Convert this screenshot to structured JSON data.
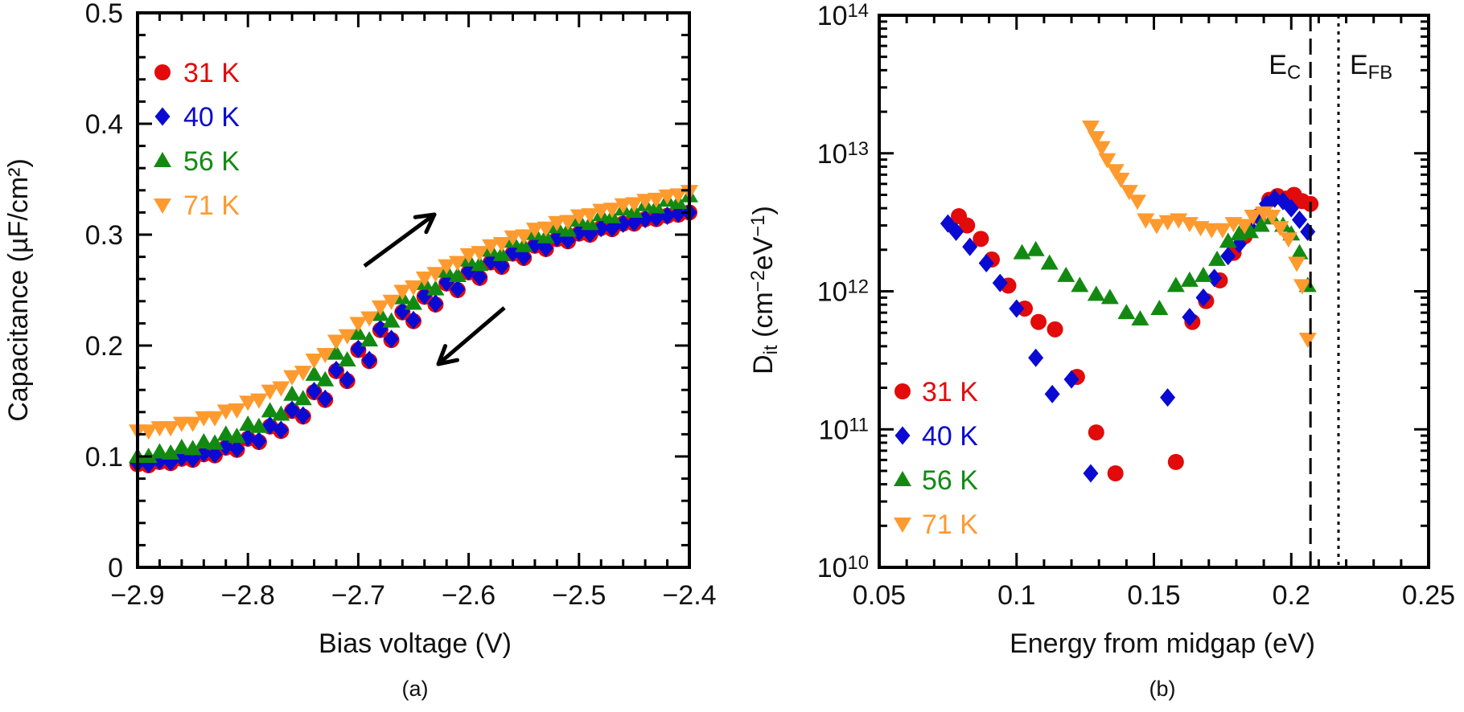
{
  "chart_data": [
    {
      "panel_label": "(a)",
      "type": "scatter",
      "xlabel": "Bias voltage (V)",
      "ylabel": "Capacitance (µF/cm²)",
      "xlim": [
        -2.9,
        -2.4
      ],
      "ylim": [
        0,
        0.5
      ],
      "xticks": [
        -2.9,
        -2.8,
        -2.7,
        -2.6,
        -2.5,
        -2.4
      ],
      "xtick_labels": [
        "−2.9",
        "−2.8",
        "−2.7",
        "−2.6",
        "−2.5",
        "−2.4"
      ],
      "yticks": [
        0,
        0.1,
        0.2,
        0.3,
        0.4,
        0.5
      ],
      "ytick_labels": [
        "0",
        "0.1",
        "0.2",
        "0.3",
        "0.4",
        "0.5"
      ],
      "grid": false,
      "legend_placement": "top-left",
      "annotations": [
        "arrow-up-right",
        "arrow-down-left"
      ],
      "series": [
        {
          "name": "31 K",
          "marker": "circle",
          "color": "#e20a0a",
          "branch1": {
            "x": [
              -2.9,
              -2.88,
              -2.86,
              -2.84,
              -2.82,
              -2.8,
              -2.78,
              -2.76,
              -2.74,
              -2.72,
              -2.7,
              -2.68,
              -2.66,
              -2.64,
              -2.62,
              -2.6,
              -2.58,
              -2.56,
              -2.54,
              -2.52,
              -2.5,
              -2.48,
              -2.46,
              -2.44,
              -2.42,
              -2.4
            ],
            "y": [
              0.093,
              0.095,
              0.098,
              0.102,
              0.108,
              0.116,
              0.127,
              0.141,
              0.158,
              0.177,
              0.196,
              0.214,
              0.23,
              0.244,
              0.256,
              0.266,
              0.275,
              0.283,
              0.29,
              0.296,
              0.301,
              0.306,
              0.31,
              0.314,
              0.317,
              0.32
            ]
          },
          "branch2": {
            "x": [
              -2.89,
              -2.87,
              -2.85,
              -2.83,
              -2.81,
              -2.79,
              -2.77,
              -2.75,
              -2.73,
              -2.71,
              -2.69,
              -2.67,
              -2.65,
              -2.63,
              -2.61,
              -2.59,
              -2.57,
              -2.55,
              -2.53,
              -2.51,
              -2.49,
              -2.47,
              -2.45,
              -2.43,
              -2.41
            ],
            "y": [
              0.092,
              0.094,
              0.097,
              0.101,
              0.106,
              0.113,
              0.123,
              0.136,
              0.151,
              0.168,
              0.186,
              0.205,
              0.222,
              0.237,
              0.25,
              0.261,
              0.271,
              0.279,
              0.287,
              0.294,
              0.3,
              0.305,
              0.31,
              0.314,
              0.318
            ]
          }
        },
        {
          "name": "40 K",
          "marker": "diamond",
          "color": "#0a0ad2",
          "branch1": {
            "x": [
              -2.9,
              -2.88,
              -2.86,
              -2.84,
              -2.82,
              -2.8,
              -2.78,
              -2.76,
              -2.74,
              -2.72,
              -2.7,
              -2.68,
              -2.66,
              -2.64,
              -2.62,
              -2.6,
              -2.58,
              -2.56,
              -2.54,
              -2.52,
              -2.5,
              -2.48,
              -2.46,
              -2.44,
              -2.42,
              -2.4
            ],
            "y": [
              0.094,
              0.096,
              0.099,
              0.103,
              0.109,
              0.117,
              0.128,
              0.142,
              0.159,
              0.178,
              0.197,
              0.215,
              0.231,
              0.245,
              0.257,
              0.267,
              0.276,
              0.284,
              0.291,
              0.297,
              0.302,
              0.306,
              0.31,
              0.314,
              0.317,
              0.32
            ]
          },
          "branch2": {
            "x": [
              -2.89,
              -2.87,
              -2.85,
              -2.83,
              -2.81,
              -2.79,
              -2.77,
              -2.75,
              -2.73,
              -2.71,
              -2.69,
              -2.67,
              -2.65,
              -2.63,
              -2.61,
              -2.59,
              -2.57,
              -2.55,
              -2.53,
              -2.51,
              -2.49,
              -2.47,
              -2.45,
              -2.43,
              -2.41
            ],
            "y": [
              0.093,
              0.095,
              0.098,
              0.102,
              0.107,
              0.114,
              0.124,
              0.137,
              0.152,
              0.169,
              0.187,
              0.206,
              0.223,
              0.238,
              0.251,
              0.262,
              0.272,
              0.28,
              0.288,
              0.295,
              0.301,
              0.306,
              0.311,
              0.315,
              0.319
            ]
          }
        },
        {
          "name": "56 K",
          "marker": "triangle-up",
          "color": "#128a12",
          "branch1": {
            "x": [
              -2.9,
              -2.88,
              -2.86,
              -2.84,
              -2.82,
              -2.8,
              -2.78,
              -2.76,
              -2.74,
              -2.72,
              -2.7,
              -2.68,
              -2.66,
              -2.64,
              -2.62,
              -2.6,
              -2.58,
              -2.56,
              -2.54,
              -2.52,
              -2.5,
              -2.48,
              -2.46,
              -2.44,
              -2.42,
              -2.4
            ],
            "y": [
              0.1,
              0.104,
              0.108,
              0.113,
              0.12,
              0.129,
              0.141,
              0.156,
              0.174,
              0.193,
              0.211,
              0.228,
              0.243,
              0.256,
              0.267,
              0.277,
              0.286,
              0.294,
              0.301,
              0.307,
              0.313,
              0.318,
              0.323,
              0.327,
              0.331,
              0.335
            ]
          },
          "branch2": {
            "x": [
              -2.89,
              -2.87,
              -2.85,
              -2.83,
              -2.81,
              -2.79,
              -2.77,
              -2.75,
              -2.73,
              -2.71,
              -2.69,
              -2.67,
              -2.65,
              -2.63,
              -2.61,
              -2.59,
              -2.57,
              -2.55,
              -2.53,
              -2.51,
              -2.49,
              -2.47,
              -2.45,
              -2.43,
              -2.41
            ],
            "y": [
              0.1,
              0.103,
              0.107,
              0.112,
              0.118,
              0.127,
              0.138,
              0.152,
              0.169,
              0.187,
              0.205,
              0.222,
              0.238,
              0.251,
              0.263,
              0.273,
              0.282,
              0.29,
              0.298,
              0.304,
              0.31,
              0.316,
              0.321,
              0.325,
              0.329
            ]
          }
        },
        {
          "name": "71 K",
          "marker": "triangle-down",
          "color": "#ff9a2e",
          "branch1": {
            "x": [
              -2.9,
              -2.88,
              -2.86,
              -2.84,
              -2.82,
              -2.8,
              -2.78,
              -2.76,
              -2.74,
              -2.72,
              -2.7,
              -2.68,
              -2.66,
              -2.64,
              -2.62,
              -2.6,
              -2.58,
              -2.56,
              -2.54,
              -2.52,
              -2.5,
              -2.48,
              -2.46,
              -2.44,
              -2.42,
              -2.4
            ],
            "y": [
              0.123,
              0.126,
              0.13,
              0.135,
              0.141,
              0.149,
              0.159,
              0.172,
              0.187,
              0.204,
              0.22,
              0.235,
              0.249,
              0.261,
              0.272,
              0.282,
              0.29,
              0.298,
              0.305,
              0.311,
              0.317,
              0.322,
              0.327,
              0.331,
              0.335,
              0.339
            ]
          },
          "branch2": {
            "x": [
              -2.89,
              -2.87,
              -2.85,
              -2.83,
              -2.81,
              -2.79,
              -2.77,
              -2.75,
              -2.73,
              -2.71,
              -2.69,
              -2.67,
              -2.65,
              -2.63,
              -2.61,
              -2.59,
              -2.57,
              -2.55,
              -2.53,
              -2.51,
              -2.49,
              -2.47,
              -2.45,
              -2.43,
              -2.41
            ],
            "y": [
              0.123,
              0.126,
              0.13,
              0.135,
              0.142,
              0.151,
              0.162,
              0.176,
              0.192,
              0.209,
              0.225,
              0.24,
              0.253,
              0.265,
              0.275,
              0.284,
              0.292,
              0.299,
              0.306,
              0.312,
              0.318,
              0.323,
              0.328,
              0.332,
              0.336
            ]
          }
        }
      ]
    },
    {
      "panel_label": "(b)",
      "type": "scatter",
      "xlabel": "Energy from midgap (eV)",
      "ylabel_segments": [
        {
          "t": "D"
        },
        {
          "t": "it",
          "sub": true
        },
        {
          "t": " (cm"
        },
        {
          "t": "−2",
          "sup": true
        },
        {
          "t": "eV"
        },
        {
          "t": "−1",
          "sup": true
        },
        {
          "t": ")"
        }
      ],
      "xlim": [
        0.05,
        0.25
      ],
      "ylim": [
        10000000000.0,
        100000000000000.0
      ],
      "yscale": "log",
      "xticks": [
        0.05,
        0.1,
        0.15,
        0.2,
        0.25
      ],
      "xtick_labels": [
        "0.05",
        "0.1",
        "0.15",
        "0.2",
        "0.25"
      ],
      "yticks": [
        10000000000.0,
        100000000000.0,
        1000000000000.0,
        10000000000000.0,
        100000000000000.0
      ],
      "ytick_labels": [
        {
          "base": "10",
          "exp": "10"
        },
        {
          "base": "10",
          "exp": "11"
        },
        {
          "base": "10",
          "exp": "12"
        },
        {
          "base": "10",
          "exp": "13"
        },
        {
          "base": "10",
          "exp": "14"
        }
      ],
      "grid": false,
      "legend_placement": "bottom-left",
      "vertical_lines": [
        {
          "x": 0.207,
          "style": "dashed",
          "label_segments": [
            {
              "t": "E"
            },
            {
              "t": "C",
              "sub": true
            }
          ]
        },
        {
          "x": 0.2172,
          "style": "dotted",
          "label_segments": [
            {
              "t": "E"
            },
            {
              "t": "FB",
              "sub": true
            }
          ]
        }
      ],
      "series": [
        {
          "name": "31 K",
          "marker": "circle",
          "color": "#e20a0a",
          "x": [
            0.079,
            0.082,
            0.087,
            0.091,
            0.097,
            0.103,
            0.108,
            0.114,
            0.122,
            0.129,
            0.136,
            0.158,
            0.164,
            0.169,
            0.174,
            0.179,
            0.183,
            0.188,
            0.192,
            0.195,
            0.198,
            0.201,
            0.204,
            0.207
          ],
          "y": [
            3500000000000.0,
            3000000000000.0,
            2400000000000.0,
            1700000000000.0,
            1100000000000.0,
            750000000000.0,
            600000000000.0,
            530000000000.0,
            240000000000.0,
            95000000000.0,
            48000000000.0,
            58000000000.0,
            600000000000.0,
            850000000000.0,
            1200000000000.0,
            1900000000000.0,
            2500000000000.0,
            3500000000000.0,
            4600000000000.0,
            4900000000000.0,
            4700000000000.0,
            5000000000000.0,
            4500000000000.0,
            4300000000000.0
          ]
        },
        {
          "name": "40 K",
          "marker": "diamond",
          "color": "#0a0ad2",
          "x": [
            0.075,
            0.078,
            0.083,
            0.089,
            0.094,
            0.1,
            0.107,
            0.113,
            0.12,
            0.127,
            0.155,
            0.163,
            0.168,
            0.172,
            0.177,
            0.181,
            0.185,
            0.188,
            0.191,
            0.194,
            0.197,
            0.2,
            0.203,
            0.206
          ],
          "y": [
            3100000000000.0,
            2700000000000.0,
            2100000000000.0,
            1600000000000.0,
            1150000000000.0,
            750000000000.0,
            330000000000.0,
            180000000000.0,
            230000000000.0,
            48000000000.0,
            170000000000.0,
            650000000000.0,
            900000000000.0,
            1250000000000.0,
            1800000000000.0,
            2200000000000.0,
            2900000000000.0,
            3500000000000.0,
            4300000000000.0,
            4700000000000.0,
            4500000000000.0,
            4000000000000.0,
            3300000000000.0,
            2700000000000.0
          ]
        },
        {
          "name": "56 K",
          "marker": "triangle-up",
          "color": "#128a12",
          "x": [
            0.102,
            0.107,
            0.112,
            0.118,
            0.123,
            0.129,
            0.134,
            0.14,
            0.145,
            0.152,
            0.158,
            0.163,
            0.168,
            0.173,
            0.177,
            0.181,
            0.185,
            0.189,
            0.193,
            0.197,
            0.2,
            0.203,
            0.206
          ],
          "y": [
            1900000000000.0,
            2000000000000.0,
            1600000000000.0,
            1300000000000.0,
            1100000000000.0,
            950000000000.0,
            900000000000.0,
            700000000000.0,
            630000000000.0,
            750000000000.0,
            1100000000000.0,
            1200000000000.0,
            1300000000000.0,
            1700000000000.0,
            2300000000000.0,
            2600000000000.0,
            2700000000000.0,
            3000000000000.0,
            3400000000000.0,
            3000000000000.0,
            2600000000000.0,
            1900000000000.0,
            1100000000000.0
          ]
        },
        {
          "name": "71 K",
          "marker": "triangle-down",
          "color": "#ff9a2e",
          "x": [
            0.127,
            0.129,
            0.131,
            0.133,
            0.136,
            0.138,
            0.141,
            0.144,
            0.147,
            0.151,
            0.155,
            0.159,
            0.163,
            0.167,
            0.171,
            0.175,
            0.179,
            0.183,
            0.186,
            0.19,
            0.193,
            0.196,
            0.199,
            0.202,
            0.204,
            0.206
          ],
          "y": [
            15500000000000.0,
            13000000000000.0,
            11000000000000.0,
            9000000000000.0,
            7500000000000.0,
            6500000000000.0,
            5300000000000.0,
            4500000000000.0,
            3300000000000.0,
            3000000000000.0,
            3200000000000.0,
            3300000000000.0,
            3100000000000.0,
            2900000000000.0,
            2800000000000.0,
            2800000000000.0,
            3100000000000.0,
            3000000000000.0,
            3500000000000.0,
            3700000000000.0,
            3500000000000.0,
            2900000000000.0,
            2400000000000.0,
            1600000000000.0,
            1100000000000.0,
            450000000000.0
          ]
        }
      ]
    }
  ]
}
